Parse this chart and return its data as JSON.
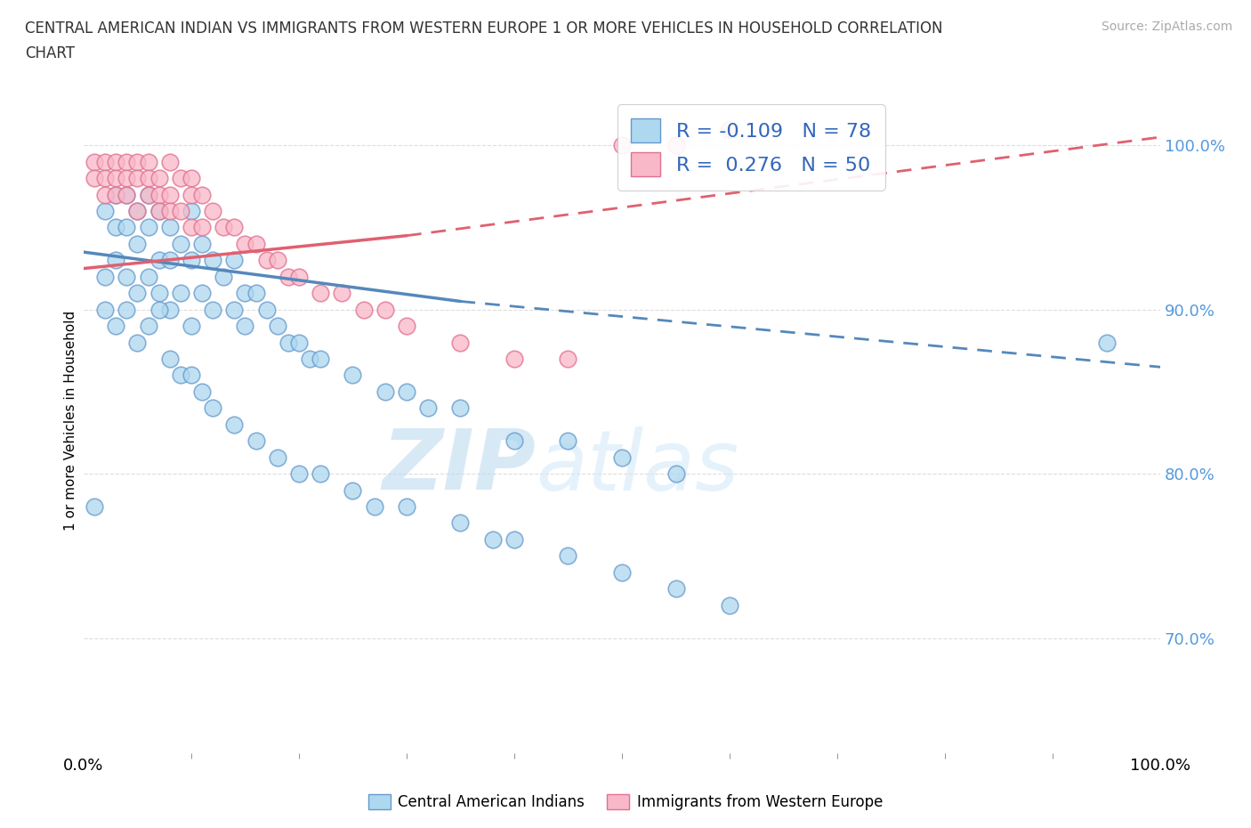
{
  "title": "CENTRAL AMERICAN INDIAN VS IMMIGRANTS FROM WESTERN EUROPE 1 OR MORE VEHICLES IN HOUSEHOLD CORRELATION\nCHART",
  "source_text": "Source: ZipAtlas.com",
  "ylabel": "1 or more Vehicles in Household",
  "xlabel": "",
  "legend_labels": [
    "Central American Indians",
    "Immigrants from Western Europe"
  ],
  "legend_r_n": [
    {
      "R": "-0.109",
      "N": "78"
    },
    {
      "R": "0.276",
      "N": "50"
    }
  ],
  "blue_color": "#add8f0",
  "pink_color": "#f9b8c8",
  "blue_edge_color": "#6699cc",
  "pink_edge_color": "#e07090",
  "blue_line_color": "#5588bb",
  "pink_line_color": "#e06070",
  "blue_scatter_x": [
    1,
    2,
    2,
    3,
    3,
    3,
    4,
    4,
    4,
    5,
    5,
    5,
    6,
    6,
    6,
    7,
    7,
    7,
    8,
    8,
    8,
    9,
    9,
    10,
    10,
    10,
    11,
    11,
    12,
    12,
    13,
    14,
    14,
    15,
    15,
    16,
    17,
    18,
    19,
    20,
    21,
    22,
    25,
    28,
    30,
    32,
    35,
    40,
    45,
    50,
    55,
    2,
    3,
    4,
    5,
    6,
    7,
    8,
    9,
    10,
    11,
    12,
    14,
    16,
    18,
    20,
    22,
    25,
    27,
    30,
    35,
    38,
    40,
    45,
    50,
    55,
    60,
    95
  ],
  "blue_scatter_y": [
    78,
    96,
    92,
    97,
    95,
    93,
    97,
    95,
    92,
    96,
    94,
    91,
    97,
    95,
    92,
    96,
    93,
    91,
    95,
    93,
    90,
    94,
    91,
    96,
    93,
    89,
    94,
    91,
    93,
    90,
    92,
    93,
    90,
    91,
    89,
    91,
    90,
    89,
    88,
    88,
    87,
    87,
    86,
    85,
    85,
    84,
    84,
    82,
    82,
    81,
    80,
    90,
    89,
    90,
    88,
    89,
    90,
    87,
    86,
    86,
    85,
    84,
    83,
    82,
    81,
    80,
    80,
    79,
    78,
    78,
    77,
    76,
    76,
    75,
    74,
    73,
    72,
    88
  ],
  "pink_scatter_x": [
    1,
    1,
    2,
    2,
    2,
    3,
    3,
    3,
    4,
    4,
    4,
    5,
    5,
    5,
    6,
    6,
    6,
    7,
    7,
    7,
    8,
    8,
    8,
    9,
    9,
    10,
    10,
    10,
    11,
    11,
    12,
    13,
    14,
    15,
    16,
    17,
    18,
    19,
    20,
    22,
    24,
    26,
    28,
    30,
    35,
    40,
    45,
    50,
    55,
    60
  ],
  "pink_scatter_y": [
    99,
    98,
    99,
    98,
    97,
    99,
    98,
    97,
    99,
    98,
    97,
    99,
    98,
    96,
    99,
    98,
    97,
    98,
    97,
    96,
    99,
    97,
    96,
    98,
    96,
    98,
    97,
    95,
    97,
    95,
    96,
    95,
    95,
    94,
    94,
    93,
    93,
    92,
    92,
    91,
    91,
    90,
    90,
    89,
    88,
    87,
    87,
    100,
    100,
    101
  ],
  "xlim": [
    0.0,
    100.0
  ],
  "ylim": [
    63.0,
    103.5
  ],
  "yticks": [
    70.0,
    80.0,
    90.0,
    100.0
  ],
  "ytick_labels": [
    "70.0%",
    "80.0%",
    "90.0%",
    "100.0%"
  ],
  "xtick_labels": [
    "0.0%",
    "100.0%"
  ],
  "watermark_zip": "ZIP",
  "watermark_atlas": "atlas",
  "blue_trend_x": [
    0,
    35,
    100
  ],
  "blue_trend_y": [
    93.5,
    90.5,
    86.5
  ],
  "blue_solid_end": 35,
  "pink_trend_x": [
    0,
    30,
    100
  ],
  "pink_trend_y": [
    92.5,
    94.5,
    100.5
  ],
  "pink_solid_end": 30,
  "ytick_color": "#5599dd",
  "legend_text_color": "#3366bb",
  "grid_color": "#dddddd"
}
